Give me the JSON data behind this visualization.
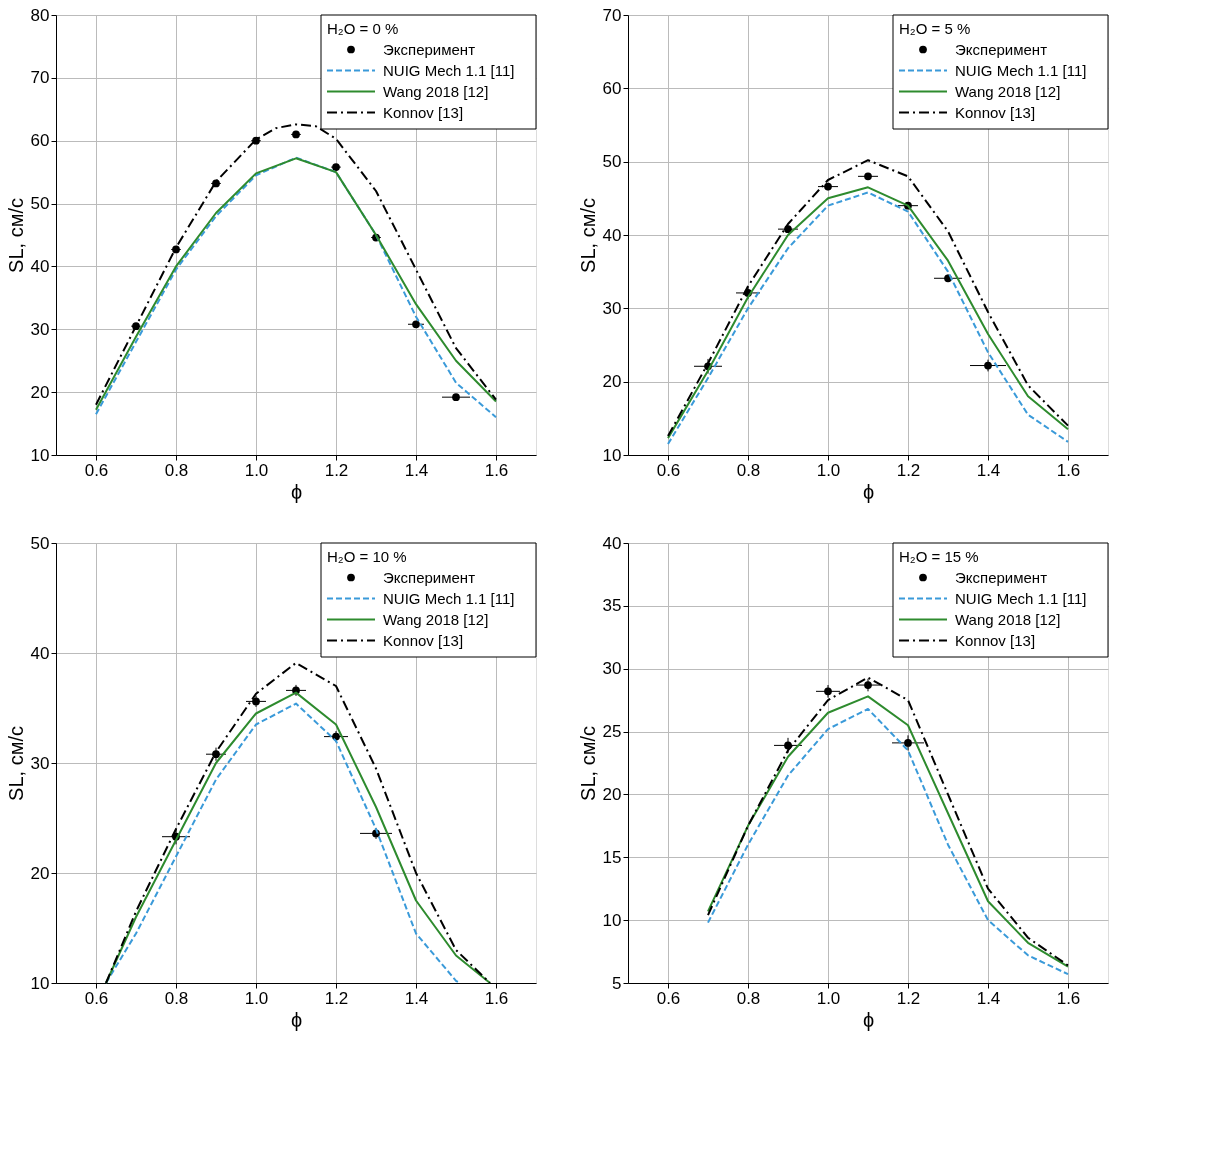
{
  "chart_data": [
    {
      "type": "line",
      "legend_title": "H₂O = 0 %",
      "xlabel": "ϕ",
      "ylabel": "SL, см/с",
      "xlim": [
        0.5,
        1.7
      ],
      "xticks": [
        {
          "value": 0.6,
          "label": "0.6"
        },
        {
          "value": 0.8,
          "label": "0.8"
        },
        {
          "value": 1.0,
          "label": "1.0"
        },
        {
          "value": 1.2,
          "label": "1.2"
        },
        {
          "value": 1.4,
          "label": "1.4"
        },
        {
          "value": 1.6,
          "label": "1.6"
        }
      ],
      "ylim": [
        10,
        80
      ],
      "yticks": [
        10,
        20,
        30,
        40,
        50,
        60,
        70,
        80
      ],
      "grid": true,
      "legend": "top right",
      "series": [
        {
          "name": "Эксперимент",
          "type": "scatter",
          "marker": "circle",
          "color": "#000000",
          "x": [
            0.7,
            0.8,
            0.9,
            1.0,
            1.1,
            1.2,
            1.3,
            1.4,
            1.5
          ],
          "values": [
            30.5,
            42.7,
            53.2,
            60.0,
            61.0,
            55.8,
            44.6,
            30.8,
            19.2
          ],
          "errors": [
            0.5,
            0.5,
            0.5,
            0.5,
            0.5,
            0.5,
            0.5,
            0.5,
            0.5
          ],
          "xerrors": [
            0.012,
            0.012,
            0.012,
            0.012,
            0.012,
            0.012,
            0.012,
            0.02,
            0.035
          ]
        },
        {
          "name": "NUIG Mech 1.1 [11]",
          "line_style": "dashed",
          "color": "#3a9ad9",
          "x": [
            0.6,
            0.7,
            0.8,
            0.9,
            1.0,
            1.1,
            1.2,
            1.3,
            1.4,
            1.5,
            1.6
          ],
          "values": [
            16.5,
            28.0,
            39.5,
            48.0,
            54.5,
            57.3,
            55.0,
            45.0,
            32.0,
            21.5,
            16.0
          ]
        },
        {
          "name": "Wang 2018 [12]",
          "line_style": "solid",
          "color": "#2e8b2e",
          "x": [
            0.6,
            0.7,
            0.8,
            0.9,
            1.0,
            1.1,
            1.2,
            1.3,
            1.4,
            1.5,
            1.6
          ],
          "values": [
            17.2,
            28.8,
            40.0,
            48.5,
            54.8,
            57.2,
            55.0,
            45.0,
            34.0,
            25.0,
            18.5
          ]
        },
        {
          "name": "Konnov [13]",
          "line_style": "dashdot",
          "color": "#000000",
          "x": [
            0.6,
            0.7,
            0.8,
            0.9,
            1.0,
            1.05,
            1.1,
            1.15,
            1.2,
            1.3,
            1.4,
            1.5,
            1.6
          ],
          "values": [
            18.0,
            30.5,
            43.0,
            53.5,
            60.2,
            62.0,
            62.6,
            62.3,
            60.3,
            52.0,
            39.5,
            27.0,
            18.8
          ]
        }
      ]
    },
    {
      "type": "line",
      "legend_title": "H₂O = 5 %",
      "xlabel": "ϕ",
      "ylabel": "SL, см/с",
      "xlim": [
        0.5,
        1.7
      ],
      "xticks": [
        {
          "value": 0.6,
          "label": "0.6"
        },
        {
          "value": 0.8,
          "label": "0.8"
        },
        {
          "value": 1.0,
          "label": "1.0"
        },
        {
          "value": 1.2,
          "label": "1.2"
        },
        {
          "value": 1.4,
          "label": "1.4"
        },
        {
          "value": 1.6,
          "label": "1.6"
        }
      ],
      "ylim": [
        10,
        70
      ],
      "yticks": [
        10,
        20,
        30,
        40,
        50,
        60,
        70
      ],
      "grid": true,
      "legend": "top right",
      "series": [
        {
          "name": "Эксперимент",
          "type": "scatter",
          "marker": "circle",
          "color": "#000000",
          "x": [
            0.7,
            0.8,
            0.9,
            1.0,
            1.1,
            1.2,
            1.3,
            1.4
          ],
          "values": [
            22.1,
            32.1,
            40.8,
            46.6,
            48.0,
            44.0,
            34.1,
            22.2
          ],
          "errors": [
            1.0,
            0.8,
            0.5,
            0.5,
            0.4,
            0.4,
            0.5,
            0.8
          ],
          "xerrors": [
            0.035,
            0.03,
            0.025,
            0.025,
            0.025,
            0.025,
            0.035,
            0.045
          ]
        },
        {
          "name": "NUIG Mech 1.1 [11]",
          "line_style": "dashed",
          "color": "#3a9ad9",
          "x": [
            0.6,
            0.7,
            0.8,
            0.9,
            1.0,
            1.1,
            1.2,
            1.3,
            1.4,
            1.5,
            1.6
          ],
          "values": [
            11.5,
            20.5,
            30.0,
            38.2,
            44.0,
            45.8,
            43.2,
            35.0,
            24.0,
            15.5,
            11.8
          ]
        },
        {
          "name": "Wang 2018 [12]",
          "line_style": "solid",
          "color": "#2e8b2e",
          "x": [
            0.6,
            0.7,
            0.8,
            0.9,
            1.0,
            1.1,
            1.2,
            1.3,
            1.4,
            1.5,
            1.6
          ],
          "values": [
            12.3,
            21.5,
            31.5,
            40.0,
            45.0,
            46.5,
            44.0,
            36.5,
            26.5,
            18.0,
            13.5
          ]
        },
        {
          "name": "Konnov [13]",
          "line_style": "dashdot",
          "color": "#000000",
          "x": [
            0.6,
            0.7,
            0.8,
            0.9,
            1.0,
            1.1,
            1.2,
            1.3,
            1.4,
            1.5,
            1.6
          ],
          "values": [
            12.6,
            22.5,
            33.0,
            41.5,
            47.5,
            50.2,
            48.0,
            40.5,
            29.5,
            19.5,
            14.0
          ]
        }
      ]
    },
    {
      "type": "line",
      "legend_title": "H₂O = 10 %",
      "xlabel": "ϕ",
      "ylabel": "SL, см/с",
      "xlim": [
        0.5,
        1.7
      ],
      "xticks": [
        {
          "value": 0.6,
          "label": "0.6"
        },
        {
          "value": 0.8,
          "label": "0.8"
        },
        {
          "value": 1.0,
          "label": "1.0"
        },
        {
          "value": 1.2,
          "label": "1.2"
        },
        {
          "value": 1.4,
          "label": "1.4"
        },
        {
          "value": 1.6,
          "label": "1.6"
        }
      ],
      "ylim": [
        10,
        50
      ],
      "yticks": [
        10,
        20,
        30,
        40,
        50
      ],
      "grid": true,
      "legend": "top right",
      "series": [
        {
          "name": "Эксперимент",
          "type": "scatter",
          "marker": "circle",
          "color": "#000000",
          "x": [
            0.8,
            0.9,
            1.0,
            1.1,
            1.2,
            1.3
          ],
          "values": [
            23.3,
            30.8,
            35.6,
            36.6,
            32.4,
            23.6
          ],
          "errors": [
            0.7,
            0.6,
            0.5,
            0.5,
            0.5,
            0.5
          ],
          "xerrors": [
            0.035,
            0.025,
            0.025,
            0.025,
            0.03,
            0.04
          ]
        },
        {
          "name": "NUIG Mech 1.1 [11]",
          "line_style": "dashed",
          "color": "#3a9ad9",
          "x": [
            0.625,
            0.7,
            0.8,
            0.9,
            1.0,
            1.1,
            1.2,
            1.3,
            1.4,
            1.5,
            1.51
          ],
          "values": [
            10.0,
            14.5,
            21.5,
            28.5,
            33.5,
            35.4,
            32.0,
            24.0,
            14.5,
            10.2,
            10.0
          ]
        },
        {
          "name": "Wang 2018 [12]",
          "line_style": "solid",
          "color": "#2e8b2e",
          "x": [
            0.625,
            0.7,
            0.8,
            0.9,
            1.0,
            1.1,
            1.2,
            1.3,
            1.4,
            1.5,
            1.585
          ],
          "values": [
            10.0,
            16.0,
            23.0,
            30.0,
            34.5,
            36.4,
            33.5,
            26.0,
            17.5,
            12.5,
            10.0
          ]
        },
        {
          "name": "Konnov [13]",
          "line_style": "dashdot",
          "color": "#000000",
          "x": [
            0.625,
            0.7,
            0.8,
            0.9,
            1.0,
            1.1,
            1.2,
            1.3,
            1.4,
            1.5,
            1.585
          ],
          "values": [
            10.0,
            16.5,
            24.0,
            31.0,
            36.3,
            39.1,
            37.0,
            29.5,
            20.0,
            13.0,
            10.0
          ]
        }
      ]
    },
    {
      "type": "line",
      "legend_title": "H₂O = 15 %",
      "xlabel": "ϕ",
      "ylabel": "SL, см/с",
      "xlim": [
        0.5,
        1.7
      ],
      "xticks": [
        {
          "value": 0.6,
          "label": "0.6"
        },
        {
          "value": 0.8,
          "label": "0.8"
        },
        {
          "value": 1.0,
          "label": "1.0"
        },
        {
          "value": 1.2,
          "label": "1.2"
        },
        {
          "value": 1.4,
          "label": "1.4"
        },
        {
          "value": 1.6,
          "label": "1.6"
        }
      ],
      "ylim": [
        5,
        40
      ],
      "yticks": [
        5,
        10,
        15,
        20,
        25,
        30,
        35,
        40
      ],
      "grid": true,
      "legend": "top right",
      "series": [
        {
          "name": "Эксперимент",
          "type": "scatter",
          "marker": "circle",
          "color": "#000000",
          "x": [
            0.9,
            1.0,
            1.1,
            1.2
          ],
          "values": [
            23.9,
            28.2,
            28.7,
            24.1
          ],
          "errors": [
            0.6,
            0.5,
            0.5,
            0.6
          ],
          "xerrors": [
            0.035,
            0.03,
            0.03,
            0.04
          ]
        },
        {
          "name": "NUIG Mech 1.1 [11]",
          "line_style": "dashed",
          "color": "#3a9ad9",
          "x": [
            0.7,
            0.8,
            0.9,
            1.0,
            1.1,
            1.2,
            1.3,
            1.4,
            1.5,
            1.6
          ],
          "values": [
            9.8,
            16.0,
            21.5,
            25.2,
            26.8,
            23.5,
            16.0,
            10.0,
            7.2,
            5.7
          ]
        },
        {
          "name": "Wang 2018 [12]",
          "line_style": "solid",
          "color": "#2e8b2e",
          "x": [
            0.7,
            0.8,
            0.9,
            1.0,
            1.1,
            1.2,
            1.3,
            1.4,
            1.5,
            1.6
          ],
          "values": [
            10.7,
            17.5,
            23.0,
            26.5,
            27.8,
            25.5,
            18.5,
            11.5,
            8.2,
            6.3
          ]
        },
        {
          "name": "Konnov [13]",
          "line_style": "dashdot",
          "color": "#000000",
          "x": [
            0.7,
            0.8,
            0.9,
            1.0,
            1.1,
            1.2,
            1.3,
            1.4,
            1.5,
            1.6
          ],
          "values": [
            10.4,
            17.5,
            23.5,
            27.5,
            29.3,
            27.5,
            20.0,
            12.5,
            8.6,
            6.4
          ]
        }
      ]
    }
  ]
}
